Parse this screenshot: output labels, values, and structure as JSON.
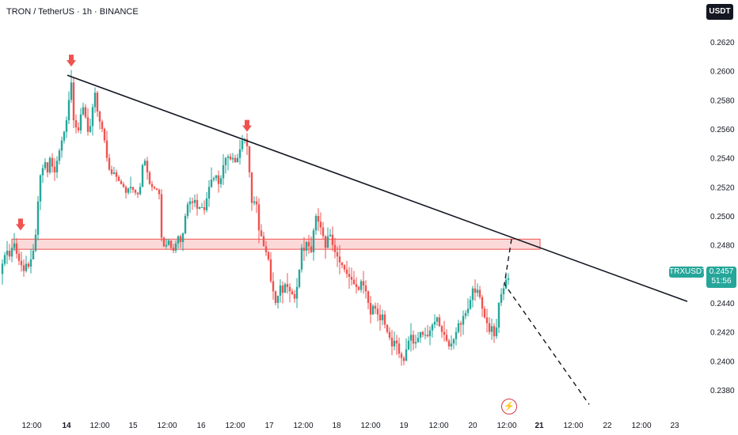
{
  "header": {
    "title": "TRON / TetherUS · 1h · BINANCE",
    "currency_badge": "USDT"
  },
  "price_label": {
    "ticker": "TRXUSDT",
    "price": "0.2457",
    "countdown": "51:56",
    "color": "#26a69a"
  },
  "icons": {
    "lightning": "lightning-icon"
  },
  "chart_data": {
    "type": "candlestick",
    "symbol": "TRXUSDT",
    "interval": "1h",
    "exchange": "BINANCE",
    "x_ticks": [
      "12:00",
      "14",
      "12:00",
      "15",
      "12:00",
      "16",
      "12:00",
      "17",
      "12:00",
      "18",
      "12:00",
      "19",
      "12:00",
      "20",
      "12:00",
      "21",
      "12:00",
      "22",
      "12:00",
      "23"
    ],
    "y_ticks": [
      0.238,
      0.24,
      0.242,
      0.244,
      0.246,
      0.248,
      0.25,
      0.252,
      0.254,
      0.256,
      0.258,
      0.26,
      0.262
    ],
    "y_tick_labels": [
      "0.2380",
      "0.2400",
      "0.2420",
      "0.2440",
      "0.2460",
      "0.2480",
      "0.2500",
      "0.2520",
      "0.2540",
      "0.2560",
      "0.2580",
      "0.2600",
      "0.2620"
    ],
    "ylim": [
      0.2362,
      0.2632
    ],
    "up_color": "#26a69a",
    "down_color": "#ef5350",
    "price_path": [
      [
        0,
        0.246
      ],
      [
        3,
        0.2467
      ],
      [
        6,
        0.2473
      ],
      [
        9,
        0.2476
      ],
      [
        12,
        0.2472
      ],
      [
        15,
        0.2478
      ],
      [
        18,
        0.2481
      ],
      [
        21,
        0.2474
      ],
      [
        24,
        0.2469
      ],
      [
        27,
        0.2466
      ],
      [
        30,
        0.2462
      ],
      [
        33,
        0.2467
      ],
      [
        36,
        0.2465
      ],
      [
        39,
        0.247
      ],
      [
        42,
        0.2476
      ],
      [
        45,
        0.2487
      ],
      [
        48,
        0.251
      ],
      [
        51,
        0.2528
      ],
      [
        54,
        0.2533
      ],
      [
        57,
        0.2537
      ],
      [
        60,
        0.253
      ],
      [
        63,
        0.254
      ],
      [
        66,
        0.2534
      ],
      [
        69,
        0.253
      ],
      [
        72,
        0.2538
      ],
      [
        75,
        0.2545
      ],
      [
        78,
        0.2552
      ],
      [
        81,
        0.2558
      ],
      [
        84,
        0.2566
      ],
      [
        87,
        0.258
      ],
      [
        90,
        0.2592
      ],
      [
        93,
        0.2566
      ],
      [
        96,
        0.2561
      ],
      [
        99,
        0.2559
      ],
      [
        102,
        0.257
      ],
      [
        105,
        0.2575
      ],
      [
        108,
        0.2568
      ],
      [
        111,
        0.2558
      ],
      [
        114,
        0.2562
      ],
      [
        117,
        0.2575
      ],
      [
        120,
        0.2585
      ],
      [
        123,
        0.2572
      ],
      [
        126,
        0.2565
      ],
      [
        129,
        0.256
      ],
      [
        132,
        0.2552
      ],
      [
        135,
        0.254
      ],
      [
        138,
        0.2532
      ],
      [
        141,
        0.2529
      ],
      [
        144,
        0.253
      ],
      [
        147,
        0.2527
      ],
      [
        150,
        0.2524
      ],
      [
        153,
        0.2522
      ],
      [
        156,
        0.252
      ],
      [
        159,
        0.2516
      ],
      [
        162,
        0.2519
      ],
      [
        165,
        0.252
      ],
      [
        168,
        0.2518
      ],
      [
        171,
        0.2516
      ],
      [
        174,
        0.2515
      ],
      [
        177,
        0.252
      ],
      [
        180,
        0.2535
      ],
      [
        183,
        0.2538
      ],
      [
        186,
        0.253
      ],
      [
        189,
        0.2522
      ],
      [
        192,
        0.252
      ],
      [
        195,
        0.2519
      ],
      [
        198,
        0.2518
      ],
      [
        201,
        0.2515
      ],
      [
        204,
        0.2485
      ],
      [
        207,
        0.2479
      ],
      [
        210,
        0.248
      ],
      [
        213,
        0.2483
      ],
      [
        216,
        0.2478
      ],
      [
        219,
        0.2476
      ],
      [
        222,
        0.2481
      ],
      [
        225,
        0.2486
      ],
      [
        228,
        0.2482
      ],
      [
        231,
        0.2488
      ],
      [
        234,
        0.25
      ],
      [
        237,
        0.2508
      ],
      [
        240,
        0.251
      ],
      [
        243,
        0.2509
      ],
      [
        246,
        0.2511
      ],
      [
        249,
        0.2505
      ],
      [
        252,
        0.2506
      ],
      [
        255,
        0.2506
      ],
      [
        258,
        0.2504
      ],
      [
        261,
        0.2512
      ],
      [
        264,
        0.252
      ],
      [
        267,
        0.2525
      ],
      [
        270,
        0.2526
      ],
      [
        273,
        0.2528
      ],
      [
        276,
        0.2522
      ],
      [
        279,
        0.2526
      ],
      [
        282,
        0.2535
      ],
      [
        285,
        0.254
      ],
      [
        288,
        0.2541
      ],
      [
        291,
        0.2539
      ],
      [
        294,
        0.254
      ],
      [
        297,
        0.2537
      ],
      [
        300,
        0.254
      ],
      [
        303,
        0.2546
      ],
      [
        306,
        0.2552
      ],
      [
        309,
        0.2553
      ],
      [
        312,
        0.2548
      ],
      [
        315,
        0.253
      ],
      [
        318,
        0.2509
      ],
      [
        321,
        0.251
      ],
      [
        324,
        0.2508
      ],
      [
        327,
        0.249
      ],
      [
        330,
        0.2486
      ],
      [
        333,
        0.2479
      ],
      [
        336,
        0.2475
      ],
      [
        339,
        0.247
      ],
      [
        342,
        0.2455
      ],
      [
        345,
        0.2448
      ],
      [
        348,
        0.244
      ],
      [
        351,
        0.2445
      ],
      [
        354,
        0.2452
      ],
      [
        357,
        0.2447
      ],
      [
        360,
        0.2453
      ],
      [
        363,
        0.2451
      ],
      [
        366,
        0.2448
      ],
      [
        369,
        0.2446
      ],
      [
        372,
        0.2443
      ],
      [
        375,
        0.2451
      ],
      [
        378,
        0.2463
      ],
      [
        381,
        0.2478
      ],
      [
        384,
        0.2476
      ],
      [
        387,
        0.2482
      ],
      [
        390,
        0.2479
      ],
      [
        393,
        0.2475
      ],
      [
        396,
        0.249
      ],
      [
        399,
        0.25
      ],
      [
        402,
        0.2496
      ],
      [
        405,
        0.2492
      ],
      [
        408,
        0.2486
      ],
      [
        411,
        0.2478
      ],
      [
        414,
        0.2486
      ],
      [
        417,
        0.2487
      ],
      [
        420,
        0.248
      ],
      [
        423,
        0.2475
      ],
      [
        426,
        0.2472
      ],
      [
        429,
        0.2468
      ],
      [
        432,
        0.2466
      ],
      [
        435,
        0.2463
      ],
      [
        438,
        0.246
      ],
      [
        441,
        0.2458
      ],
      [
        444,
        0.2456
      ],
      [
        447,
        0.2453
      ],
      [
        450,
        0.2451
      ],
      [
        453,
        0.2449
      ],
      [
        456,
        0.2455
      ],
      [
        459,
        0.2452
      ],
      [
        462,
        0.2448
      ],
      [
        465,
        0.244
      ],
      [
        468,
        0.2432
      ],
      [
        471,
        0.2438
      ],
      [
        474,
        0.2436
      ],
      [
        477,
        0.2432
      ],
      [
        480,
        0.2428
      ],
      [
        483,
        0.2432
      ],
      [
        486,
        0.2425
      ],
      [
        489,
        0.242
      ],
      [
        492,
        0.2416
      ],
      [
        495,
        0.241
      ],
      [
        498,
        0.2414
      ],
      [
        501,
        0.2412
      ],
      [
        504,
        0.2405
      ],
      [
        507,
        0.2402
      ],
      [
        510,
        0.24
      ],
      [
        513,
        0.2408
      ],
      [
        516,
        0.2414
      ],
      [
        519,
        0.2418
      ],
      [
        522,
        0.2412
      ],
      [
        525,
        0.2413
      ],
      [
        528,
        0.2416
      ],
      [
        531,
        0.242
      ],
      [
        534,
        0.2418
      ],
      [
        537,
        0.2418
      ],
      [
        540,
        0.2417
      ],
      [
        543,
        0.2421
      ],
      [
        546,
        0.2425
      ],
      [
        549,
        0.2427
      ],
      [
        552,
        0.243
      ],
      [
        555,
        0.2424
      ],
      [
        558,
        0.242
      ],
      [
        561,
        0.2418
      ],
      [
        564,
        0.2414
      ],
      [
        567,
        0.241
      ],
      [
        570,
        0.2412
      ],
      [
        573,
        0.2415
      ],
      [
        576,
        0.242
      ],
      [
        579,
        0.2426
      ],
      [
        582,
        0.2425
      ],
      [
        585,
        0.2431
      ],
      [
        588,
        0.2433
      ],
      [
        591,
        0.2436
      ],
      [
        594,
        0.2442
      ],
      [
        597,
        0.245
      ],
      [
        600,
        0.2447
      ],
      [
        603,
        0.2449
      ],
      [
        606,
        0.2444
      ],
      [
        609,
        0.2436
      ],
      [
        612,
        0.243
      ],
      [
        615,
        0.2426
      ],
      [
        618,
        0.242
      ],
      [
        621,
        0.2424
      ],
      [
        624,
        0.2417
      ],
      [
        627,
        0.2423
      ],
      [
        630,
        0.244
      ],
      [
        633,
        0.2446
      ],
      [
        636,
        0.245
      ],
      [
        639,
        0.2456
      ],
      [
        642,
        0.2457
      ]
    ],
    "annotations": {
      "resistance_trendline": {
        "from": [
          85,
          0.2597
        ],
        "to": [
          868,
          0.2441
        ],
        "color": "#131722"
      },
      "support_zone": {
        "x_range": [
          15,
          682
        ],
        "y_range": [
          0.2477,
          0.2484
        ],
        "color": "#ef5350"
      },
      "projection_path": {
        "points": [
          [
            646,
            0.2484
          ],
          [
            637,
            0.2453
          ],
          [
            744,
            0.237
          ]
        ],
        "style": "dashed",
        "color": "#131722"
      },
      "markers": [
        {
          "type": "down-arrow",
          "x": 26,
          "y": 0.249,
          "color": "#ef5350"
        },
        {
          "type": "down-arrow",
          "x": 90,
          "y": 0.2603,
          "color": "#ef5350"
        },
        {
          "type": "down-arrow",
          "x": 312,
          "y": 0.2558,
          "color": "#ef5350"
        }
      ]
    }
  }
}
